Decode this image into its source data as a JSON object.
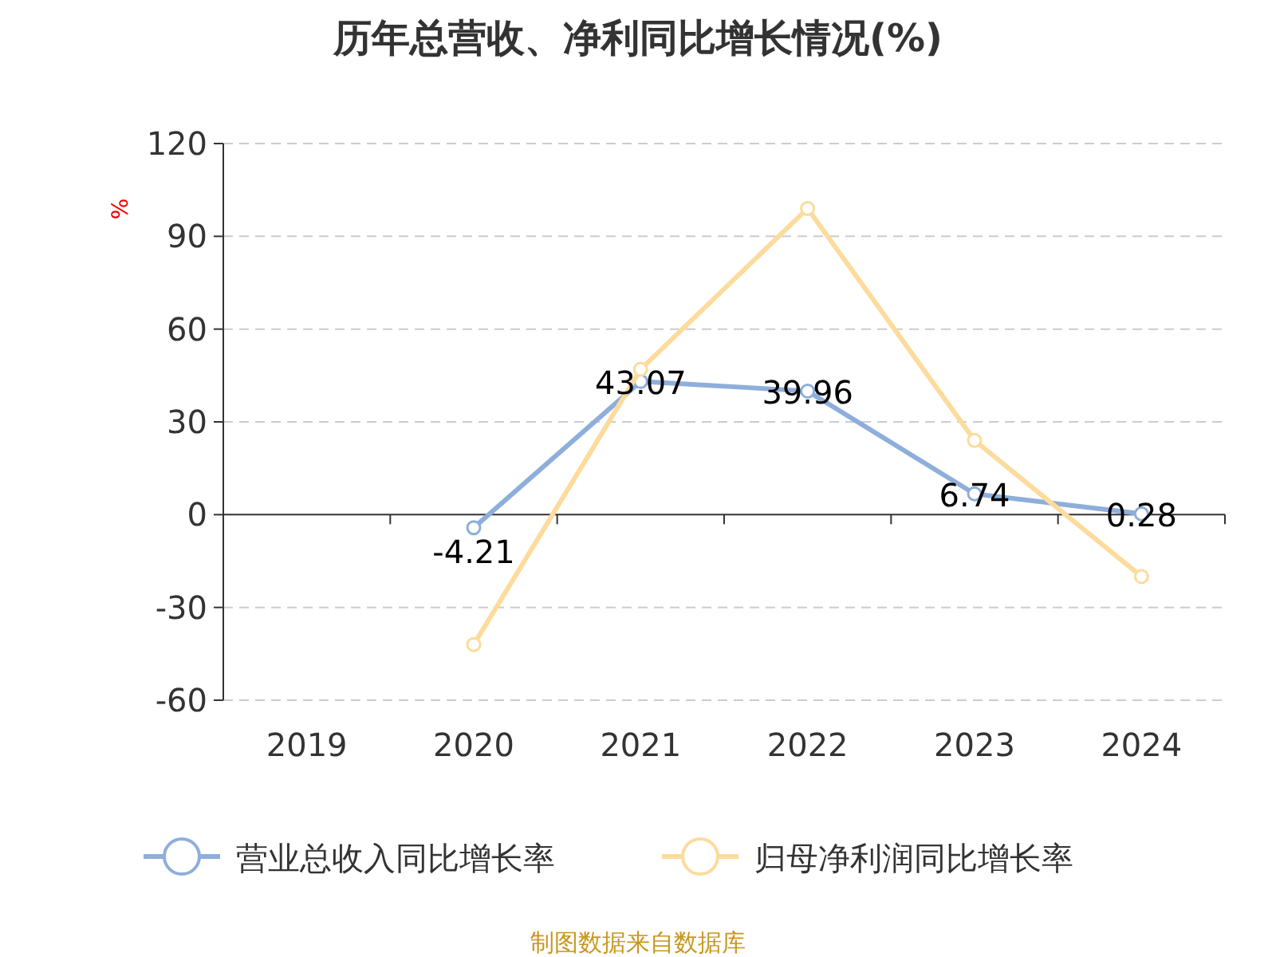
{
  "chart_data": {
    "type": "line",
    "title": "历年总营收、净利同比增长情况(%)",
    "ylabel": "%",
    "categories": [
      "2019",
      "2020",
      "2021",
      "2022",
      "2023",
      "2024"
    ],
    "series": [
      {
        "name": "营业总收入同比增长率",
        "color": "#8eaedb",
        "values": [
          null,
          -4.21,
          43.07,
          39.96,
          6.74,
          0.28
        ],
        "value_labels": [
          null,
          "-4.21",
          "43.07",
          "39.96",
          "6.74",
          "0.28"
        ]
      },
      {
        "name": "归母净利润同比增长率",
        "color": "#fddb9c",
        "values": [
          null,
          -42,
          47,
          99,
          24,
          -20
        ]
      }
    ],
    "ylim": [
      -60,
      120
    ],
    "yticks": [
      -60,
      -30,
      0,
      30,
      60,
      90,
      120
    ],
    "grid": "y",
    "legend": "bottom",
    "marker": "circle",
    "annotations": [
      "制图数据来自数据库"
    ]
  }
}
